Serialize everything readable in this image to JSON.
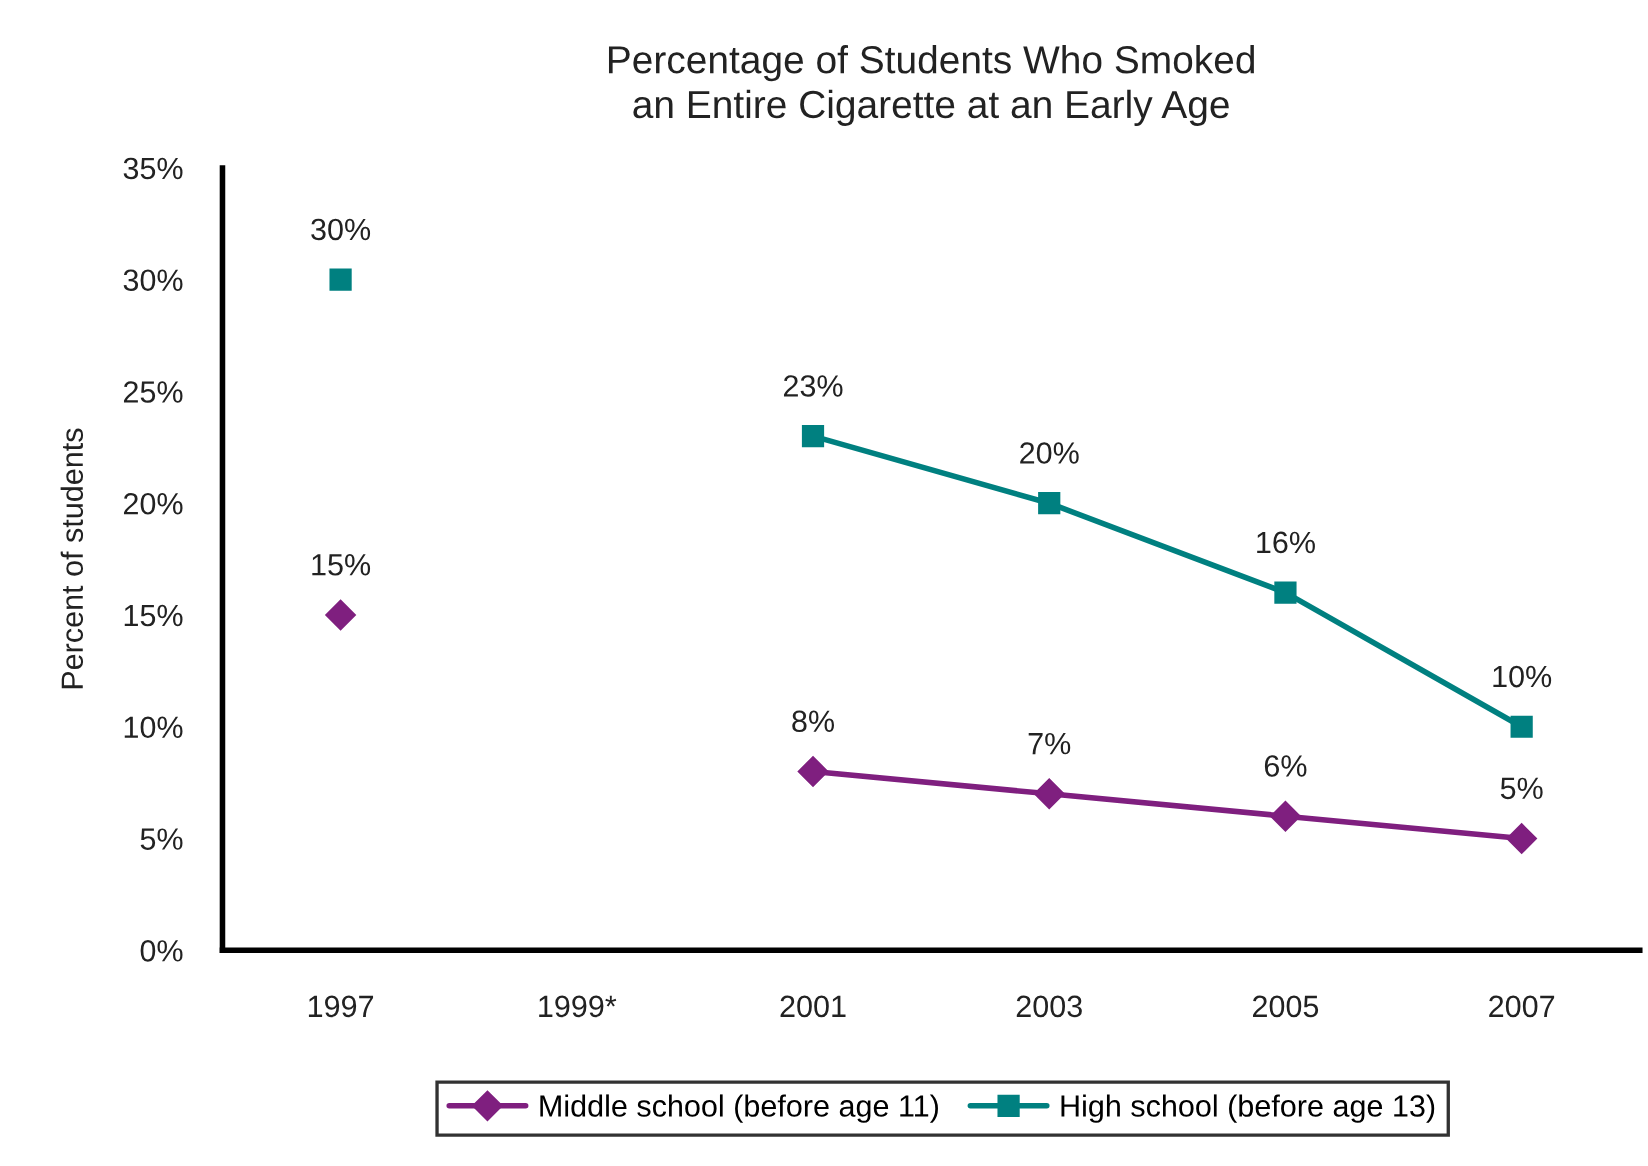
{
  "chart_data": {
    "type": "line",
    "title": "Percentage of Students Who Smoked\nan Entire Cigarette at an Early Age",
    "ylabel": "Percent of students",
    "categories": [
      "1997",
      "1999*",
      "2001",
      "2003",
      "2005",
      "2007"
    ],
    "series": [
      {
        "name": "Middle school (before age 11)",
        "color": "#7f1f7f",
        "marker": "diamond",
        "values": [
          15,
          null,
          8,
          7,
          6,
          5
        ],
        "value_labels": [
          "15%",
          null,
          "8%",
          "7%",
          "6%",
          "5%"
        ]
      },
      {
        "name": "High school (before age 13)",
        "color": "#008080",
        "marker": "square",
        "values": [
          30,
          null,
          23,
          20,
          16,
          10
        ],
        "value_labels": [
          "30%",
          null,
          "23%",
          "20%",
          "16%",
          "10%"
        ]
      }
    ],
    "ylim": [
      0,
      35
    ],
    "yticks": [
      {
        "value": 0,
        "label": "0%"
      },
      {
        "value": 5,
        "label": "5%"
      },
      {
        "value": 10,
        "label": "10%"
      },
      {
        "value": 15,
        "label": "15%"
      },
      {
        "value": 20,
        "label": "20%"
      },
      {
        "value": 25,
        "label": "25%"
      },
      {
        "value": 30,
        "label": "30%"
      },
      {
        "value": 35,
        "label": "35%"
      }
    ],
    "grid": false,
    "legend": "bottom",
    "line_style": "solid"
  }
}
